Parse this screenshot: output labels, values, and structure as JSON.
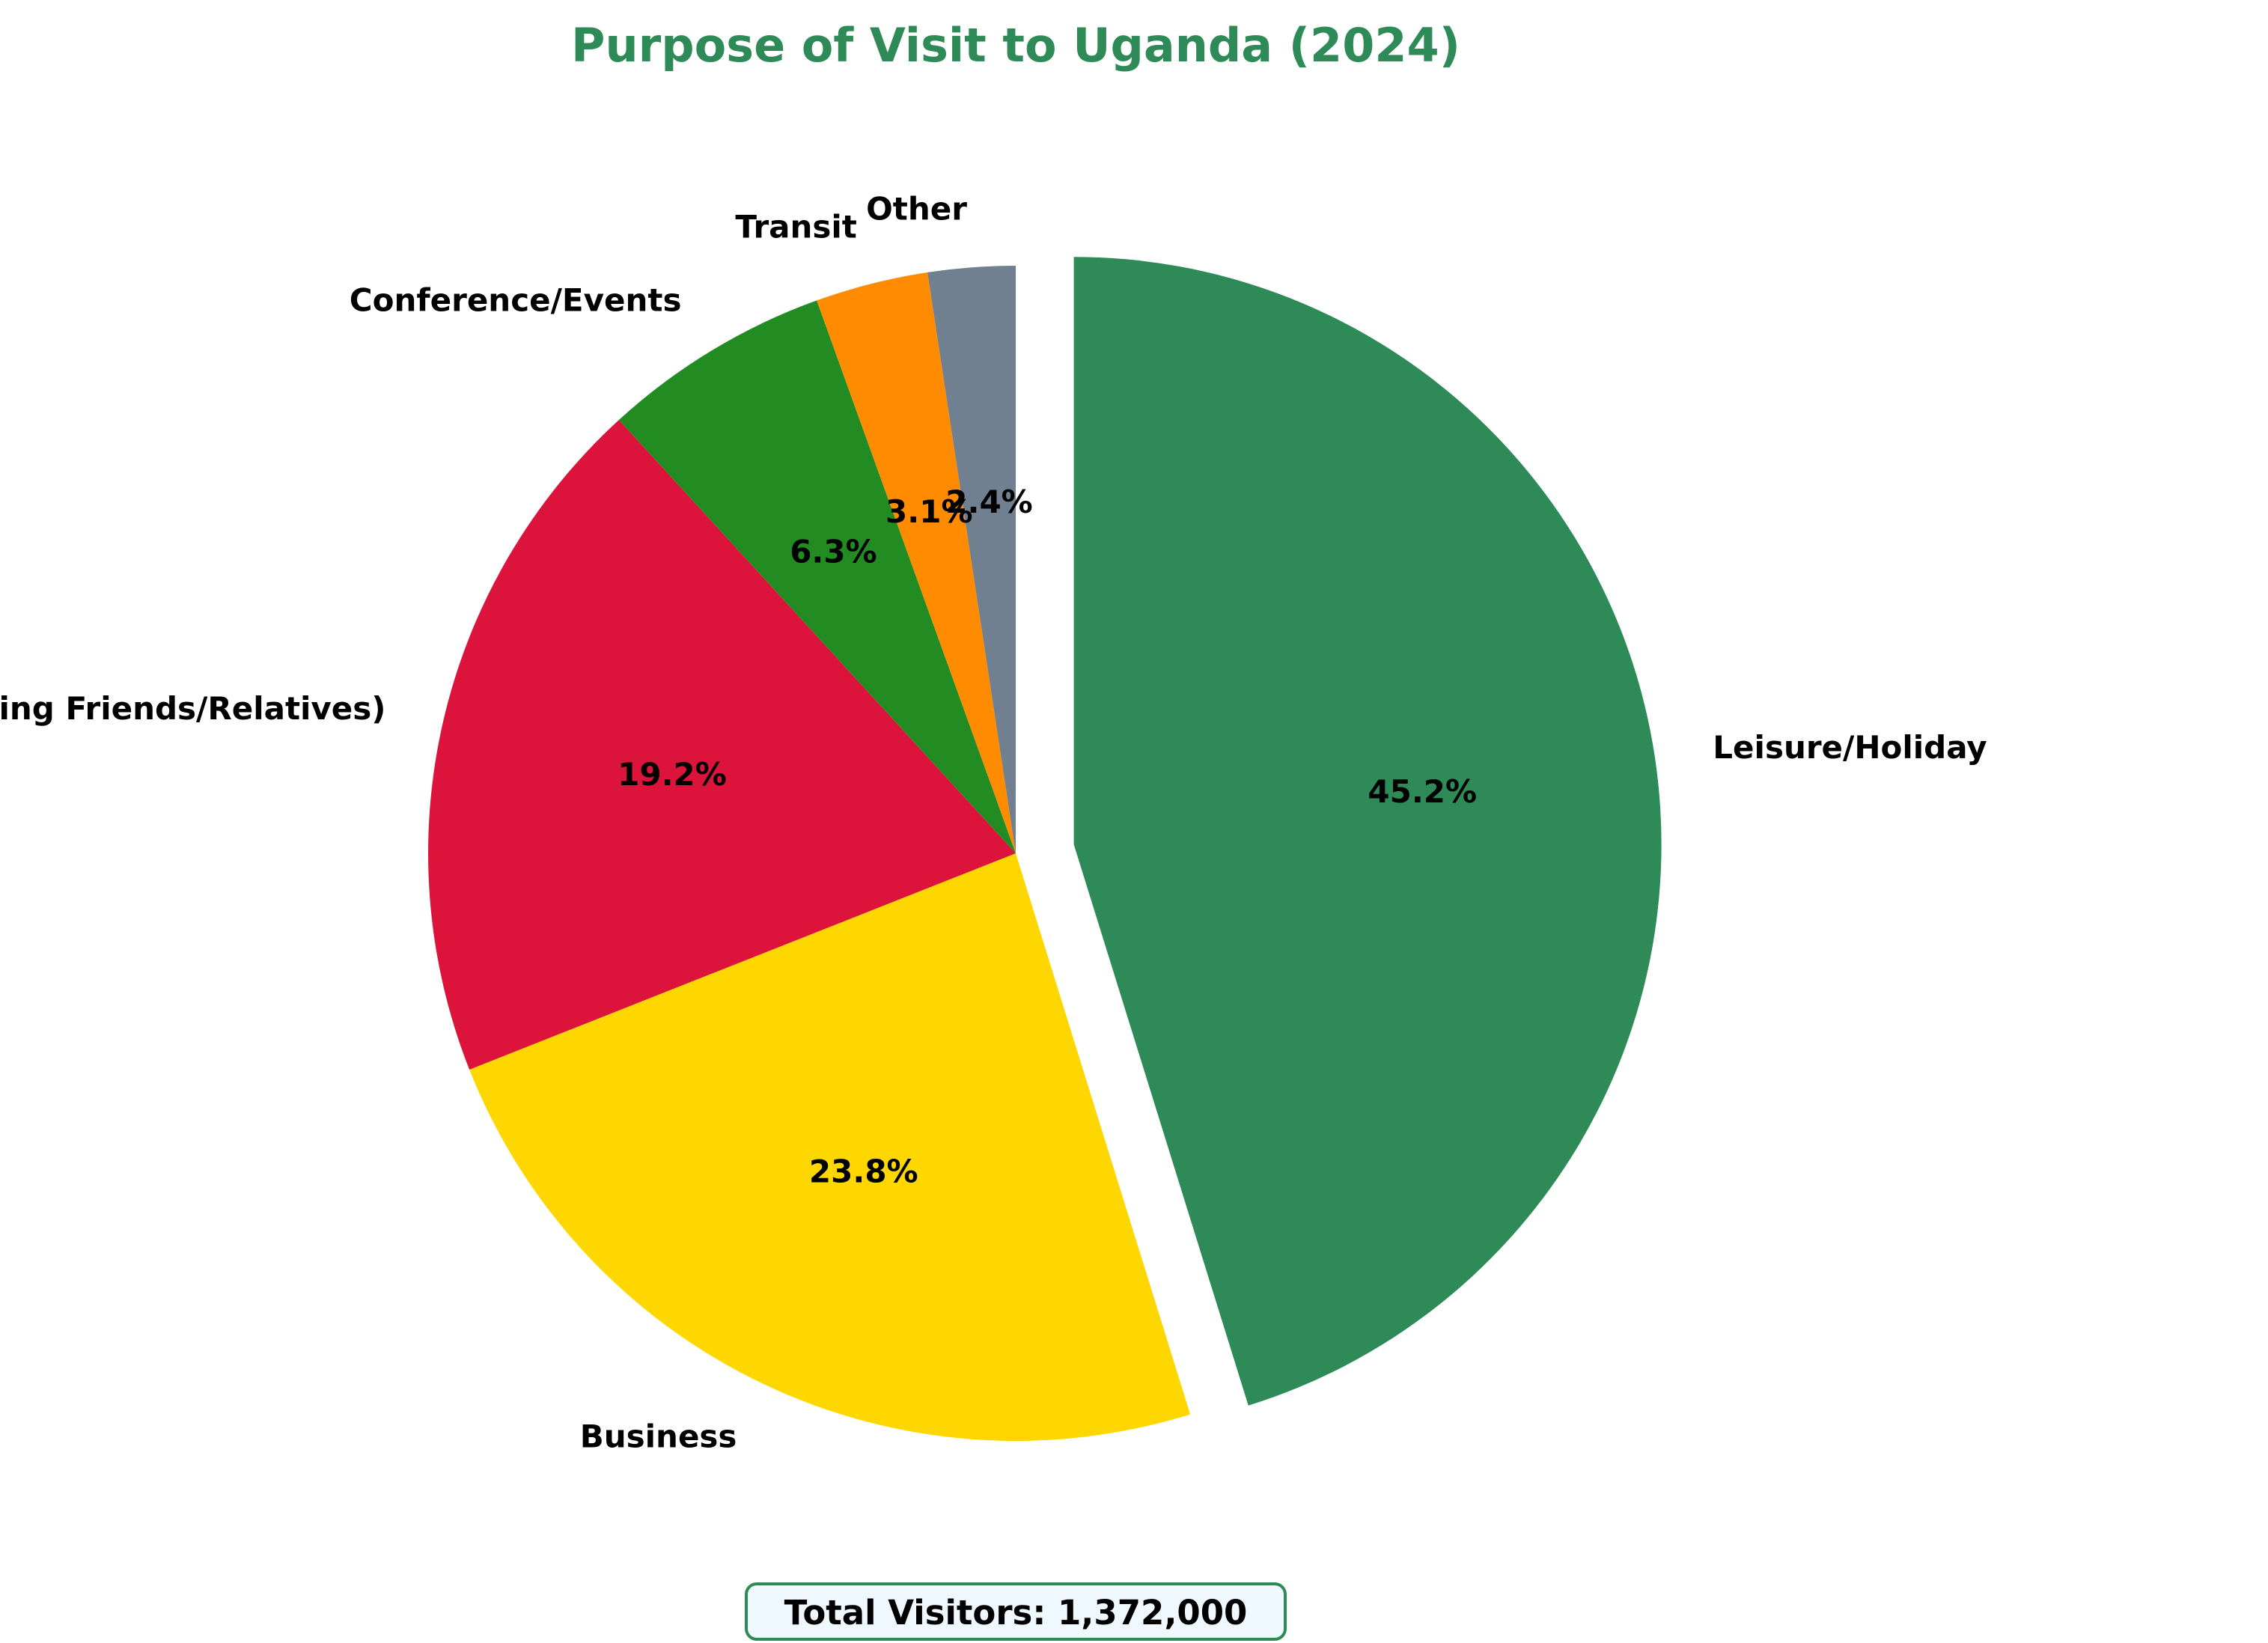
{
  "chart_data": {
    "type": "pie",
    "title": "Purpose of Visit to Uganda (2024)",
    "title_color": "#2E8B57",
    "start_angle_deg": 90,
    "direction": "clockwise",
    "exploded": "Leisure/Holiday",
    "slices": [
      {
        "label": "Leisure/Holiday",
        "value": 45.2,
        "pct": "45.2%",
        "color": "#2E8B57"
      },
      {
        "label": "Business",
        "value": 23.8,
        "pct": "23.8%",
        "color": "#FFD700"
      },
      {
        "label": "VFR (Visiting Friends/Relatives)",
        "value": 19.2,
        "pct": "19.2%",
        "color": "#DC143C"
      },
      {
        "label": "Conference/Events",
        "value": 6.3,
        "pct": "6.3%",
        "color": "#228B22"
      },
      {
        "label": "Transit",
        "value": 3.1,
        "pct": "3.1%",
        "color": "#FF8C00"
      },
      {
        "label": "Other",
        "value": 2.4,
        "pct": "2.4%",
        "color": "#708090"
      }
    ],
    "annotation": {
      "text": "Total Visitors: 1,372,000",
      "box_fill": "#F0F8FF",
      "box_edge": "#2E8B57"
    }
  }
}
